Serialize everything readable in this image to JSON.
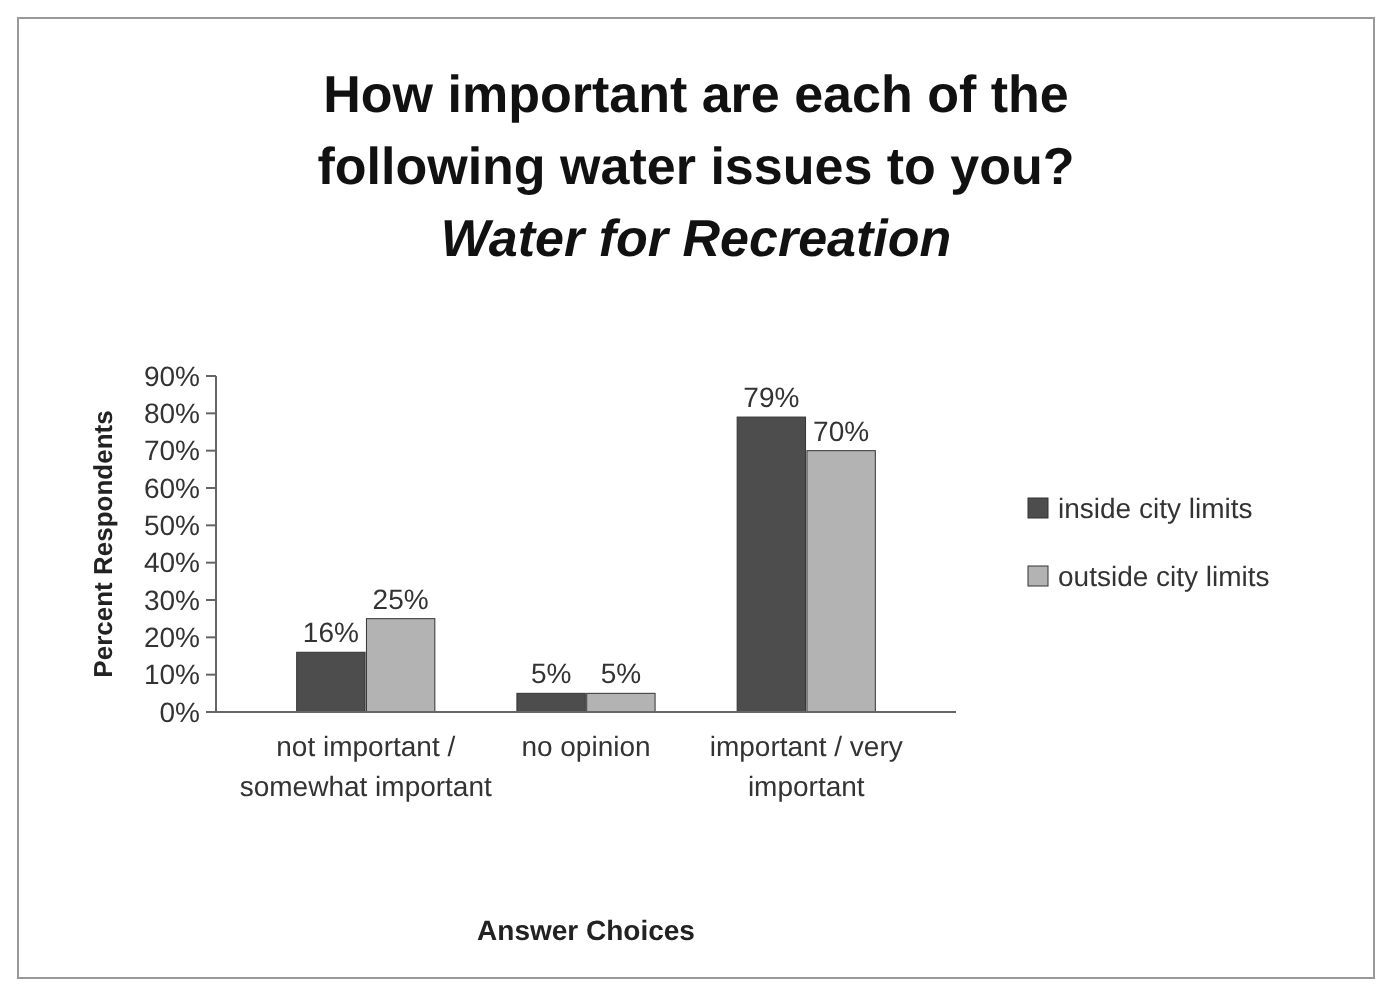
{
  "chart_data": {
    "type": "bar",
    "title": "How important are each of the following water issues to you?",
    "subtitle": "Water for Recreation",
    "xlabel": "Answer Choices",
    "ylabel": "Percent Respondents",
    "categories": [
      "not important / somewhat important",
      "no opinion",
      "important / very important"
    ],
    "series": [
      {
        "name": "inside city limits",
        "color": "#4d4d4d",
        "values": [
          16,
          5,
          79
        ]
      },
      {
        "name": "outside city limits",
        "color": "#b3b3b3",
        "values": [
          25,
          5,
          70
        ]
      }
    ],
    "ylim": [
      0,
      90
    ],
    "yticks": [
      {
        "value": 0,
        "label": "0%"
      },
      {
        "value": 10,
        "label": "10%"
      },
      {
        "value": 20,
        "label": "20%"
      },
      {
        "value": 30,
        "label": "30%"
      },
      {
        "value": 40,
        "label": "40%"
      },
      {
        "value": 50,
        "label": "50%"
      },
      {
        "value": 60,
        "label": "60%"
      },
      {
        "value": 70,
        "label": "70%"
      },
      {
        "value": 80,
        "label": "80%"
      },
      {
        "value": 90,
        "label": "90%"
      }
    ],
    "value_labels": [
      [
        "16%",
        "5%",
        "79%"
      ],
      [
        "25%",
        "5%",
        "70%"
      ]
    ],
    "legend": "right",
    "grid": false
  }
}
